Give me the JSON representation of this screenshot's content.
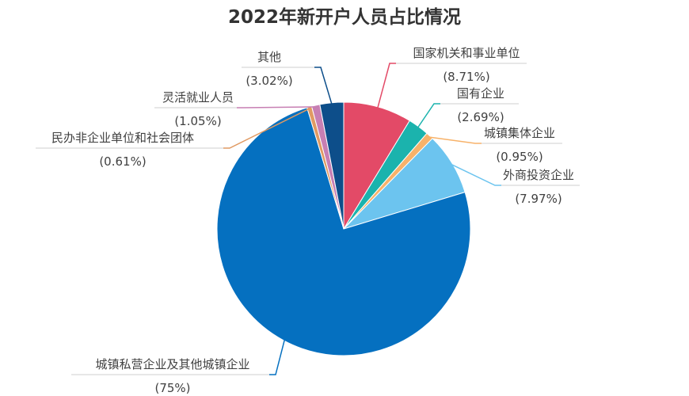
{
  "chart_data": {
    "type": "pie",
    "title": "2022年新开户人员占比情况",
    "slices": [
      {
        "label": "国家机关和事业单位",
        "value": 8.71,
        "display": "(8.71%)",
        "color": "#E34A67",
        "icon": "label-leader"
      },
      {
        "label": "国有企业",
        "value": 2.69,
        "display": "(2.69%)",
        "color": "#1BB3AD"
      },
      {
        "label": "城镇集体企业",
        "value": 0.95,
        "display": "(0.95%)",
        "color": "#F7B26A"
      },
      {
        "label": "外商投资企业",
        "value": 7.97,
        "display": "(7.97%)",
        "color": "#6CC4EF"
      },
      {
        "label": "城镇私营企业及其他城镇企业",
        "value": 75,
        "display": "(75%)",
        "color": "#0570C0"
      },
      {
        "label": "民办非企业单位和社会团体",
        "value": 0.61,
        "display": "(0.61%)",
        "color": "#E09A63"
      },
      {
        "label": "灵活就业人员",
        "value": 1.05,
        "display": "(1.05%)",
        "color": "#C77FB3"
      },
      {
        "label": "其他",
        "value": 3.02,
        "display": "(3.02%)",
        "color": "#0D4E8A"
      }
    ],
    "legend": "none"
  }
}
